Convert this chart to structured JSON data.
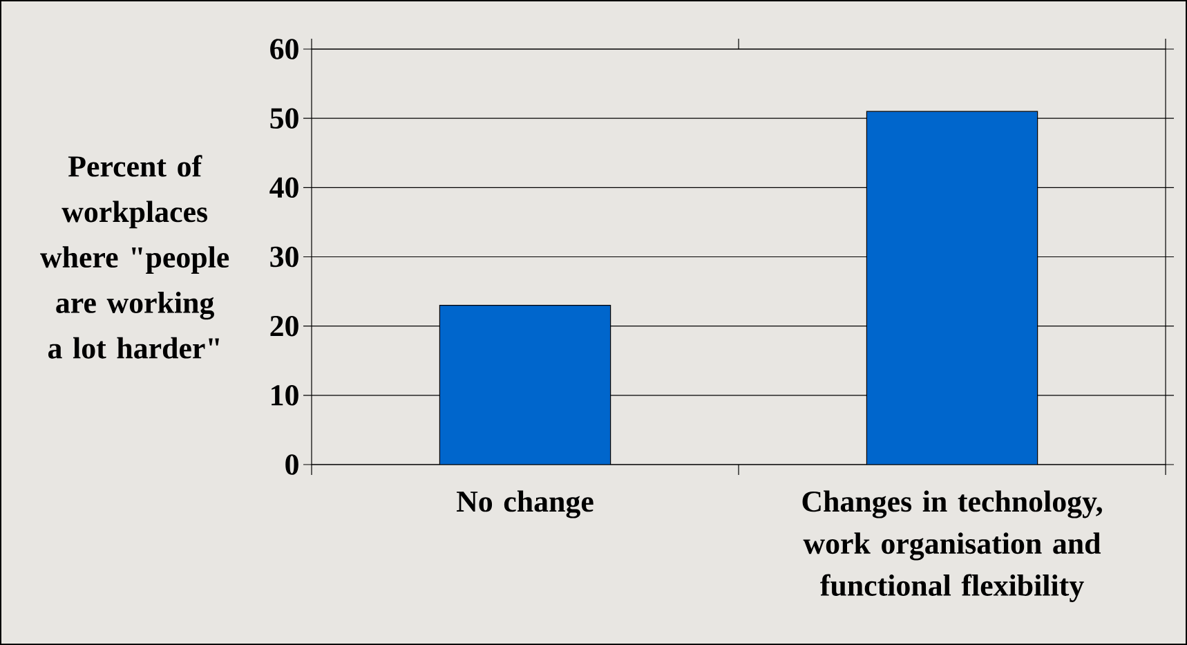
{
  "chart_data": {
    "type": "bar",
    "ylabel": "Percent of workplaces where \"people are working a lot harder\"",
    "categories": [
      "No change",
      "Changes in technology, work organisation and functional flexibility"
    ],
    "values": [
      23,
      51
    ],
    "color": "#0066cc",
    "ylim": [
      0,
      60
    ],
    "yticks": [
      0,
      10,
      20,
      30,
      40,
      50,
      60
    ],
    "grid": "y"
  }
}
